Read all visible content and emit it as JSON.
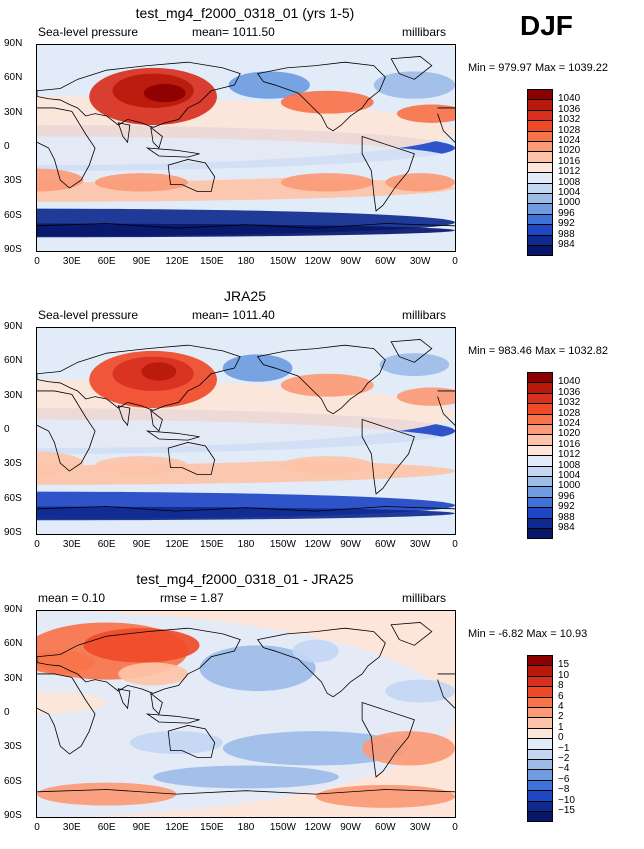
{
  "season": "DJF",
  "panels": [
    {
      "title": "test_mg4_f2000_0318_01 (yrs 1-5)",
      "left_label": "Sea-level pressure",
      "center_label": "mean=  1011.50",
      "right_label": "millibars",
      "minmax": "Min = 979.97 Max = 1039.22",
      "colorbar_labels": [
        "1040",
        "1036",
        "1032",
        "1028",
        "1024",
        "1020",
        "1016",
        "1012",
        "1008",
        "1004",
        "1000",
        "996",
        "992",
        "988",
        "984"
      ],
      "colorbar_colors": [
        "#8b0000",
        "#b8190a",
        "#d7301f",
        "#ef4a28",
        "#f7734a",
        "#fb9a76",
        "#fdc3a8",
        "#fde5d9",
        "#e2ecf9",
        "#c3d6f2",
        "#9dbce8",
        "#6f9ce0",
        "#3f72d9",
        "#1f47c4",
        "#0f2a8f",
        "#08176a"
      ],
      "type": "abs"
    },
    {
      "title": "JRA25",
      "left_label": "Sea-level pressure",
      "center_label": "mean=  1011.40",
      "right_label": "millibars",
      "minmax": "Min = 983.46 Max = 1032.82",
      "colorbar_labels": [
        "1040",
        "1036",
        "1032",
        "1028",
        "1024",
        "1020",
        "1016",
        "1012",
        "1008",
        "1004",
        "1000",
        "996",
        "992",
        "988",
        "984"
      ],
      "colorbar_colors": [
        "#8b0000",
        "#b8190a",
        "#d7301f",
        "#ef4a28",
        "#f7734a",
        "#fb9a76",
        "#fdc3a8",
        "#fde5d9",
        "#e2ecf9",
        "#c3d6f2",
        "#9dbce8",
        "#6f9ce0",
        "#3f72d9",
        "#1f47c4",
        "#0f2a8f",
        "#08176a"
      ],
      "type": "abs"
    },
    {
      "title": "test_mg4_f2000_0318_01 - JRA25",
      "left_label": "mean =   0.10",
      "center_label": "rmse =   1.87",
      "right_label": "millibars",
      "minmax": "Min =  -6.82  Max =  10.93",
      "colorbar_labels": [
        "15",
        "10",
        "8",
        "6",
        "4",
        "2",
        "1",
        "0",
        "−1",
        "−2",
        "−4",
        "−6",
        "−8",
        "−10",
        "−15"
      ],
      "colorbar_colors": [
        "#8b0000",
        "#b8190a",
        "#d7301f",
        "#ef4a28",
        "#f7734a",
        "#fb9a76",
        "#fdc3a8",
        "#fde5d9",
        "#e2ecf9",
        "#c3d6f2",
        "#9dbce8",
        "#6f9ce0",
        "#3f72d9",
        "#1f47c4",
        "#0f2a8f",
        "#08176a"
      ],
      "type": "diff"
    }
  ],
  "lat_labels": [
    "90N",
    "60N",
    "30N",
    "0",
    "30S",
    "60S",
    "90S"
  ],
  "lon_labels": [
    "0",
    "30E",
    "60E",
    "90E",
    "120E",
    "150E",
    "180",
    "150W",
    "120W",
    "90W",
    "60W",
    "30W",
    "0"
  ]
}
